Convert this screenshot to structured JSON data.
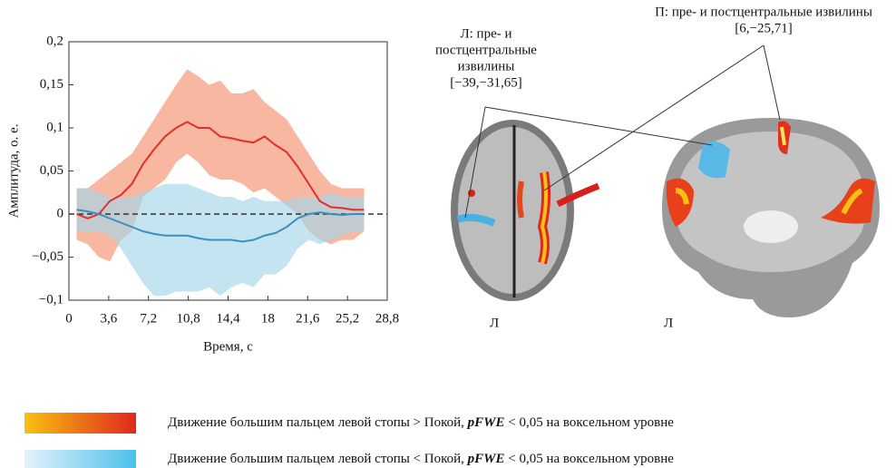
{
  "chart_data": {
    "type": "line",
    "x_label": "Время, с",
    "y_label": "Амплитуда, о. е.",
    "x": [
      0.7,
      1.7,
      2.7,
      3.7,
      4.7,
      5.7,
      6.7,
      7.7,
      8.7,
      9.7,
      10.7,
      11.7,
      12.7,
      13.7,
      14.7,
      15.7,
      16.7,
      17.7,
      18.7,
      19.7,
      20.7,
      21.7,
      22.7,
      23.7,
      24.7,
      25.7,
      26.7
    ],
    "series": [
      {
        "color": "#e0302a",
        "band_color": "#f2906e",
        "values": [
          0,
          -0.005,
          0,
          0.015,
          0.022,
          0.035,
          0.058,
          0.075,
          0.09,
          0.1,
          0.107,
          0.1,
          0.1,
          0.09,
          0.088,
          0.085,
          0.083,
          0.09,
          0.08,
          0.072,
          0.055,
          0.035,
          0.015,
          0.008,
          0.007,
          0.005,
          0.005
        ],
        "upper": [
          0.03,
          0.03,
          0.04,
          0.05,
          0.06,
          0.07,
          0.09,
          0.11,
          0.13,
          0.15,
          0.168,
          0.16,
          0.15,
          0.155,
          0.14,
          0.14,
          0.145,
          0.13,
          0.12,
          0.11,
          0.09,
          0.07,
          0.05,
          0.035,
          0.03,
          0.03,
          0.03
        ],
        "lower": [
          -0.03,
          -0.035,
          -0.05,
          -0.055,
          -0.03,
          -0.02,
          0.02,
          0.03,
          0.04,
          0.06,
          0.07,
          0.06,
          0.045,
          0.04,
          0.04,
          0.035,
          0.025,
          0.03,
          0.02,
          0.01,
          0,
          -0.02,
          -0.03,
          -0.035,
          -0.03,
          -0.03,
          -0.02
        ]
      },
      {
        "color": "#3a8fc0",
        "band_color": "#a6d6ea",
        "values": [
          0.005,
          0.003,
          0,
          -0.005,
          -0.01,
          -0.015,
          -0.02,
          -0.023,
          -0.025,
          -0.025,
          -0.025,
          -0.028,
          -0.03,
          -0.03,
          -0.03,
          -0.032,
          -0.03,
          -0.025,
          -0.022,
          -0.015,
          -0.005,
          0,
          0.002,
          0,
          -0.001,
          0,
          0
        ],
        "upper": [
          0.03,
          0.03,
          0.025,
          0.02,
          0.02,
          0.02,
          0.025,
          0.03,
          0.035,
          0.035,
          0.035,
          0.03,
          0.025,
          0.02,
          0.02,
          0.015,
          0.02,
          0.015,
          0.015,
          0.015,
          0.02,
          0.02,
          0.02,
          0.025,
          0.02,
          0.02,
          0.02
        ],
        "lower": [
          -0.02,
          -0.02,
          -0.02,
          -0.025,
          -0.04,
          -0.06,
          -0.08,
          -0.095,
          -0.095,
          -0.09,
          -0.09,
          -0.09,
          -0.085,
          -0.095,
          -0.085,
          -0.08,
          -0.085,
          -0.07,
          -0.07,
          -0.06,
          -0.04,
          -0.03,
          -0.035,
          -0.03,
          -0.025,
          -0.02,
          -0.02
        ]
      }
    ],
    "xlim": [
      0,
      28.8
    ],
    "xticks": [
      0,
      {
        "value": 3.6,
        "label": "3,6"
      },
      {
        "value": 7.2,
        "label": "7,2"
      },
      {
        "value": 10.8,
        "label": "10,8"
      },
      {
        "value": 14.4,
        "label": "14,4"
      },
      18,
      {
        "value": 21.6,
        "label": "21,6"
      },
      {
        "value": 25.2,
        "label": "25,2"
      },
      {
        "value": 28.8,
        "label": "28,8"
      }
    ],
    "ylim": [
      -0.1,
      0.2
    ],
    "yticks": [
      {
        "value": -0.1,
        "label": "−0,1"
      },
      {
        "value": -0.05,
        "label": "−0,05"
      },
      0,
      {
        "value": 0.05,
        "label": "0,05"
      },
      {
        "value": 0.1,
        "label": "0,1"
      },
      {
        "value": 0.15,
        "label": "0,15"
      },
      {
        "value": 0.2,
        "label": "0,2"
      }
    ],
    "zero_line": true
  },
  "annotations": {
    "left": [
      "Л: пре- и",
      "постцентральные",
      "извилины",
      "[−39,−31,65]"
    ],
    "right": [
      "П: пре- и постцентральные извилины",
      "[6,−25,71]"
    ],
    "side_labels": [
      "Л",
      "Л"
    ]
  },
  "legend": [
    {
      "text": "Движение большим пальцем левой стопы > Покой, ",
      "emph": "pFWE",
      "rest": " < 0,05 на воксельном уровне"
    },
    {
      "text": "Движение большим пальцем левой стопы < Покой, ",
      "emph": "pFWE",
      "rest": " < 0,05 на воксельном уровне"
    }
  ]
}
